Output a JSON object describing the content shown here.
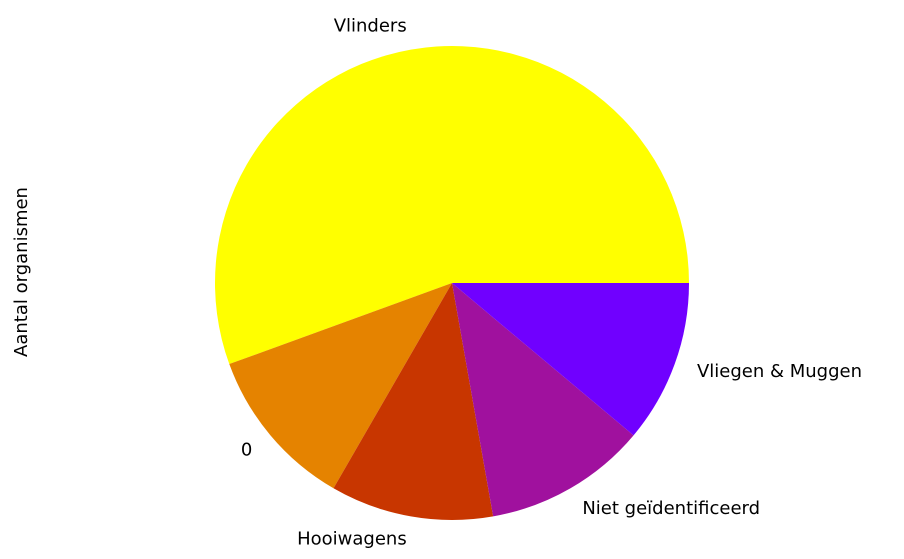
{
  "chart_data": {
    "type": "pie",
    "ylabel": "Aantal organismen",
    "categories": [
      "Vlinders",
      "0",
      "Hooiwagens",
      "Niet geïdentificeerd",
      "Vliegen & Muggen"
    ],
    "values": [
      5,
      1,
      1,
      1,
      1
    ],
    "colors": [
      "#ffff00",
      "#e58300",
      "#c83600",
      "#a0119e",
      "#7000ff"
    ]
  }
}
